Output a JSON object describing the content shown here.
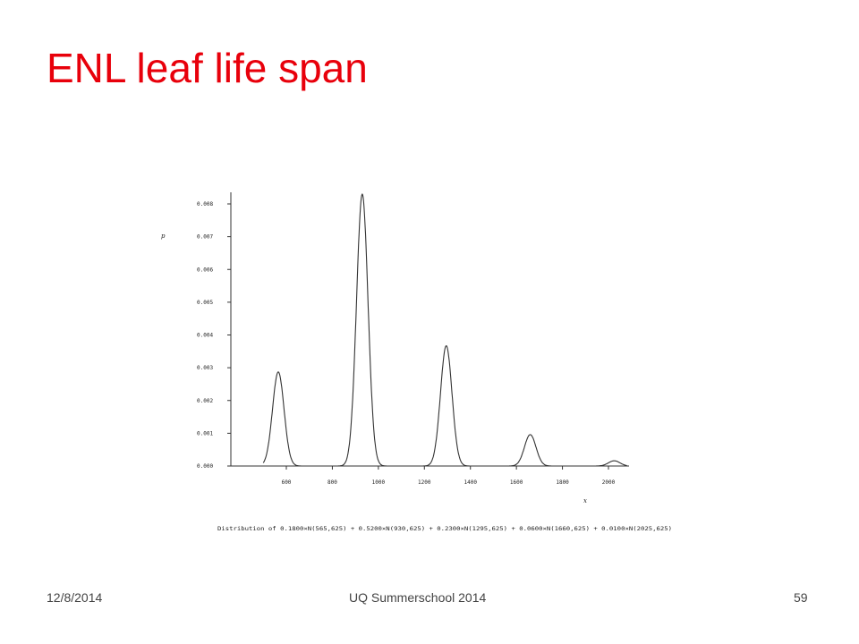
{
  "slide": {
    "title": "ENL leaf life span",
    "title_color": "#e8000b"
  },
  "footer": {
    "date": "12/8/2014",
    "center": "UQ Summerschool 2014",
    "page_number": "59"
  },
  "chart_data": {
    "type": "line",
    "title": "",
    "xlabel": "x",
    "ylabel": "p",
    "xlim": [
      460,
      2080
    ],
    "ylim": [
      0,
      0.0083
    ],
    "x_ticks": [
      600,
      800,
      1000,
      1200,
      1400,
      1600,
      1800,
      2000
    ],
    "x_tick_labels": [
      "600",
      "800",
      "1000",
      "1200",
      "1400",
      "1600",
      "1800",
      "2000"
    ],
    "y_ticks": [
      0,
      0.001,
      0.002,
      0.003,
      0.004,
      0.005,
      0.006,
      0.007,
      0.008
    ],
    "y_tick_labels": [
      "0.000",
      "0.001",
      "0.002",
      "0.003",
      "0.004",
      "0.005",
      "0.006",
      "0.007",
      "0.008"
    ],
    "caption": "Distribution of  0.1800×N(565,625) + 0.5200×N(930,625) + 0.2300×N(1295,625) + 0.0600×N(1660,625) + 0.0100×N(2025,625)",
    "mixture": {
      "weights": [
        0.18,
        0.52,
        0.23,
        0.06,
        0.01
      ],
      "means": [
        565,
        930,
        1295,
        1660,
        2025
      ],
      "variance": 625
    },
    "peaks": [
      {
        "x": 565,
        "y": 0.00287
      },
      {
        "x": 930,
        "y": 0.0083
      },
      {
        "x": 1295,
        "y": 0.00367
      },
      {
        "x": 1660,
        "y": 0.00096
      },
      {
        "x": 2025,
        "y": 0.00016
      }
    ],
    "line_color": "#333333",
    "grid": false
  }
}
